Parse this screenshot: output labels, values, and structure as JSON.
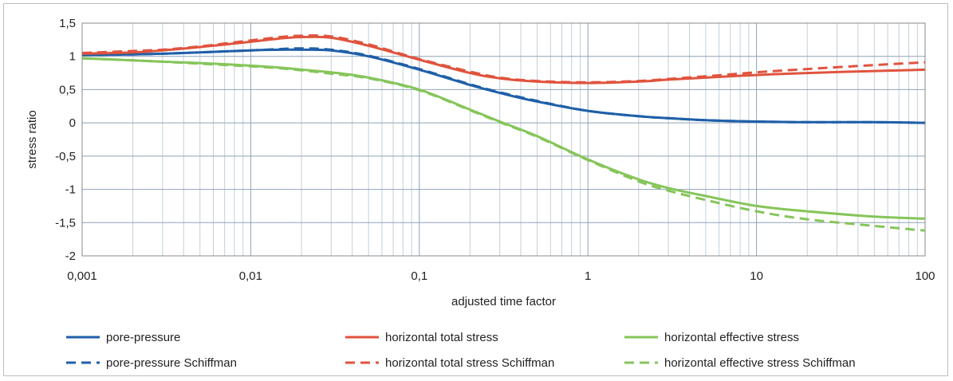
{
  "chart_data": {
    "type": "line",
    "title": "",
    "xlabel": "adjusted time factor",
    "ylabel": "stress ratio",
    "xscale": "log",
    "xlim": [
      0.001,
      100
    ],
    "ylim": [
      -2,
      1.5
    ],
    "xticks": [
      "0,001",
      "0,01",
      "0,1",
      "1",
      "10",
      "100"
    ],
    "yticks": [
      "1,5",
      "1",
      "0,5",
      "0",
      "-0,5",
      "-1",
      "-1,5",
      "-2"
    ],
    "grid": true,
    "legend_position": "bottom",
    "series": [
      {
        "name": "pore-pressure",
        "color": "#1f5fa8",
        "dash": "solid",
        "x": [
          0.001,
          0.002,
          0.003,
          0.005,
          0.01,
          0.015,
          0.02,
          0.03,
          0.05,
          0.1,
          0.2,
          0.3,
          0.5,
          1,
          2,
          3,
          5,
          10,
          20,
          50,
          100
        ],
        "y": [
          1.02,
          1.03,
          1.04,
          1.06,
          1.09,
          1.1,
          1.1,
          1.09,
          1.0,
          0.8,
          0.57,
          0.45,
          0.32,
          0.18,
          0.1,
          0.07,
          0.04,
          0.02,
          0.01,
          0.01,
          0.0
        ]
      },
      {
        "name": "pore-pressure Schiffman",
        "color": "#1f5fa8",
        "dash": "dashed",
        "x": [
          0.001,
          0.002,
          0.003,
          0.005,
          0.01,
          0.015,
          0.02,
          0.03,
          0.05,
          0.1,
          0.2,
          0.3,
          0.5,
          1,
          2,
          3,
          5,
          10,
          20,
          50,
          100
        ],
        "y": [
          1.02,
          1.03,
          1.04,
          1.06,
          1.09,
          1.11,
          1.12,
          1.1,
          1.01,
          0.81,
          0.58,
          0.46,
          0.33,
          0.18,
          0.1,
          0.07,
          0.04,
          0.02,
          0.01,
          0.01,
          0.0
        ]
      },
      {
        "name": "horizontal total stress",
        "color": "#e0533d",
        "dash": "solid",
        "x": [
          0.001,
          0.002,
          0.003,
          0.005,
          0.01,
          0.015,
          0.02,
          0.03,
          0.05,
          0.1,
          0.2,
          0.3,
          0.5,
          1,
          2,
          3,
          5,
          10,
          20,
          50,
          100
        ],
        "y": [
          1.04,
          1.06,
          1.09,
          1.14,
          1.22,
          1.27,
          1.29,
          1.28,
          1.16,
          0.95,
          0.75,
          0.67,
          0.62,
          0.6,
          0.62,
          0.65,
          0.68,
          0.72,
          0.75,
          0.78,
          0.8
        ]
      },
      {
        "name": "horizontal total stress Schiffman",
        "color": "#e0533d",
        "dash": "dashed",
        "x": [
          0.001,
          0.002,
          0.003,
          0.005,
          0.01,
          0.015,
          0.02,
          0.03,
          0.05,
          0.1,
          0.2,
          0.3,
          0.5,
          1,
          2,
          3,
          5,
          10,
          20,
          50,
          100
        ],
        "y": [
          1.05,
          1.08,
          1.1,
          1.15,
          1.24,
          1.29,
          1.31,
          1.3,
          1.18,
          0.96,
          0.77,
          0.68,
          0.63,
          0.61,
          0.63,
          0.66,
          0.7,
          0.76,
          0.81,
          0.87,
          0.91
        ]
      },
      {
        "name": "horizontal effective stress",
        "color": "#86c55a",
        "dash": "solid",
        "x": [
          0.001,
          0.002,
          0.003,
          0.005,
          0.01,
          0.015,
          0.02,
          0.03,
          0.05,
          0.1,
          0.2,
          0.3,
          0.5,
          1,
          2,
          3,
          5,
          10,
          20,
          50,
          100
        ],
        "y": [
          0.97,
          0.94,
          0.92,
          0.9,
          0.86,
          0.83,
          0.8,
          0.76,
          0.68,
          0.5,
          0.2,
          0.02,
          -0.2,
          -0.55,
          -0.85,
          -0.98,
          -1.1,
          -1.25,
          -1.33,
          -1.41,
          -1.44
        ]
      },
      {
        "name": "horizontal effective stress Schiffman",
        "color": "#86c55a",
        "dash": "dashed",
        "x": [
          0.001,
          0.002,
          0.003,
          0.005,
          0.01,
          0.015,
          0.02,
          0.03,
          0.05,
          0.1,
          0.2,
          0.3,
          0.5,
          1,
          2,
          3,
          5,
          10,
          20,
          50,
          100
        ],
        "y": [
          0.97,
          0.94,
          0.92,
          0.89,
          0.85,
          0.82,
          0.79,
          0.74,
          0.67,
          0.49,
          0.19,
          0.01,
          -0.21,
          -0.56,
          -0.88,
          -1.02,
          -1.16,
          -1.33,
          -1.45,
          -1.55,
          -1.62
        ]
      }
    ]
  }
}
